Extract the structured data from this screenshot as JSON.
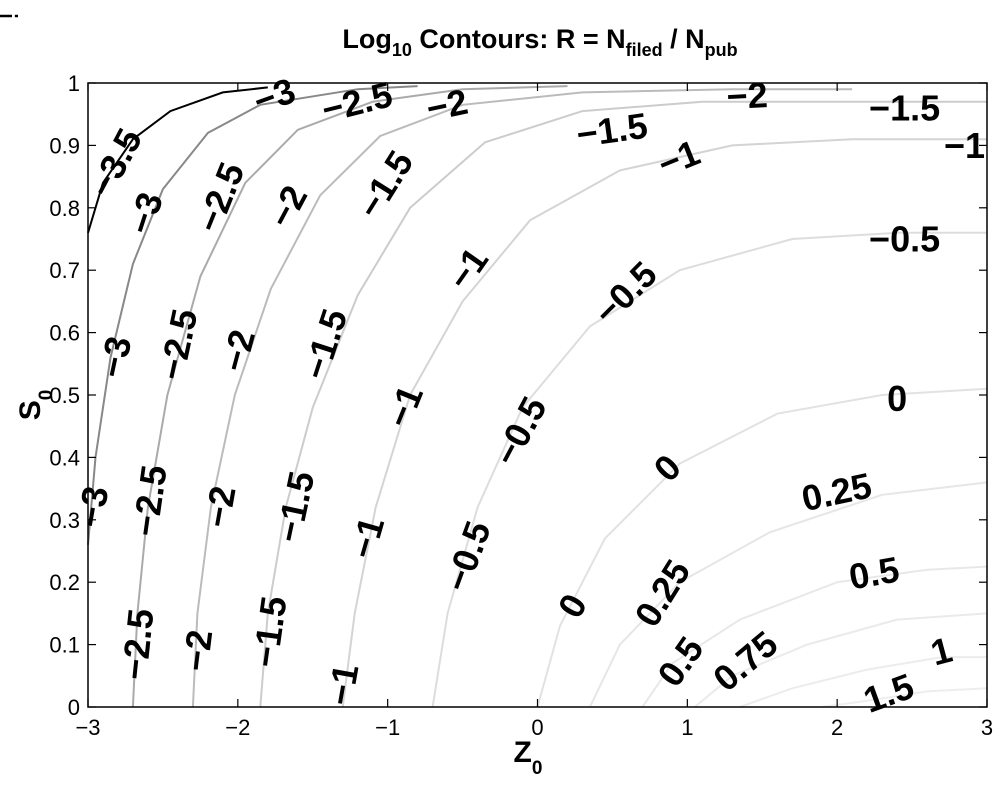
{
  "corner_icon": "i",
  "chart_data": {
    "type": "contour",
    "title": {
      "prefix": "Log",
      "prefix_sub": "10",
      "middle": " Contours: R = N",
      "mid_sub": "filed",
      "slash": " / N",
      "end_sub": "pub"
    },
    "xlabel": {
      "main": "Z",
      "sub": "0"
    },
    "ylabel": {
      "main": "S",
      "sub": "0"
    },
    "xlim": [
      -3,
      3
    ],
    "ylim": [
      0,
      1
    ],
    "xticks": [
      -3,
      -2,
      -1,
      0,
      1,
      2,
      3
    ],
    "xtick_labels": [
      "−3",
      "−2",
      "−1",
      "0",
      "1",
      "2",
      "3"
    ],
    "yticks": [
      0,
      0.1,
      0.2,
      0.3,
      0.4,
      0.5,
      0.6,
      0.7,
      0.8,
      0.9,
      1
    ],
    "ytick_labels": [
      "0",
      "0.1",
      "0.2",
      "0.3",
      "0.4",
      "0.5",
      "0.6",
      "0.7",
      "0.8",
      "0.9",
      "1"
    ],
    "levels": [
      {
        "level": -3.5,
        "color": "#000000",
        "points": [
          [
            -3,
            0.76
          ],
          [
            -2.9,
            0.84
          ],
          [
            -2.7,
            0.91
          ],
          [
            -2.45,
            0.955
          ],
          [
            -2.1,
            0.985
          ],
          [
            -1.8,
            0.993
          ]
        ]
      },
      {
        "level": -3,
        "color": "#888888",
        "points": [
          [
            -3,
            0.26
          ],
          [
            -2.95,
            0.4
          ],
          [
            -2.85,
            0.56
          ],
          [
            -2.7,
            0.71
          ],
          [
            -2.5,
            0.83
          ],
          [
            -2.2,
            0.92
          ],
          [
            -1.85,
            0.965
          ],
          [
            -1.2,
            0.99
          ],
          [
            -0.8,
            0.995
          ]
        ]
      },
      {
        "level": -2.5,
        "color": "#aaaaaa",
        "points": [
          [
            -2.7,
            0
          ],
          [
            -2.67,
            0.15
          ],
          [
            -2.6,
            0.32
          ],
          [
            -2.47,
            0.5
          ],
          [
            -2.25,
            0.69
          ],
          [
            -1.95,
            0.84
          ],
          [
            -1.6,
            0.925
          ],
          [
            -1.1,
            0.97
          ],
          [
            -0.5,
            0.99
          ],
          [
            0.2,
            0.995
          ]
        ]
      },
      {
        "level": -2,
        "color": "#bbbbbb",
        "points": [
          [
            -2.3,
            0
          ],
          [
            -2.27,
            0.15
          ],
          [
            -2.18,
            0.32
          ],
          [
            -2.02,
            0.5
          ],
          [
            -1.78,
            0.67
          ],
          [
            -1.45,
            0.82
          ],
          [
            -1.05,
            0.915
          ],
          [
            -0.5,
            0.965
          ],
          [
            0.3,
            0.985
          ],
          [
            1.3,
            0.99
          ],
          [
            2.1,
            0.99
          ]
        ]
      },
      {
        "level": -1.5,
        "color": "#cccccc",
        "points": [
          [
            -1.85,
            0
          ],
          [
            -1.8,
            0.15
          ],
          [
            -1.68,
            0.32
          ],
          [
            -1.5,
            0.48
          ],
          [
            -1.2,
            0.66
          ],
          [
            -0.85,
            0.8
          ],
          [
            -0.35,
            0.905
          ],
          [
            0.3,
            0.955
          ],
          [
            1.1,
            0.97
          ],
          [
            2,
            0.97
          ],
          [
            3,
            0.97
          ]
        ]
      },
      {
        "level": -1,
        "color": "#d4d4d4",
        "points": [
          [
            -1.3,
            0
          ],
          [
            -1.22,
            0.15
          ],
          [
            -1.08,
            0.32
          ],
          [
            -0.85,
            0.5
          ],
          [
            -0.5,
            0.65
          ],
          [
            -0.05,
            0.78
          ],
          [
            0.55,
            0.86
          ],
          [
            1.3,
            0.9
          ],
          [
            2.1,
            0.91
          ],
          [
            3,
            0.91
          ]
        ]
      },
      {
        "level": -0.5,
        "color": "#dddddd",
        "points": [
          [
            -0.7,
            0
          ],
          [
            -0.6,
            0.15
          ],
          [
            -0.4,
            0.32
          ],
          [
            -0.1,
            0.48
          ],
          [
            0.35,
            0.61
          ],
          [
            0.95,
            0.7
          ],
          [
            1.7,
            0.75
          ],
          [
            2.4,
            0.76
          ],
          [
            3,
            0.76
          ]
        ]
      },
      {
        "level": 0,
        "color": "#e2e2e2",
        "points": [
          [
            0,
            0
          ],
          [
            0.15,
            0.13
          ],
          [
            0.45,
            0.27
          ],
          [
            0.95,
            0.39
          ],
          [
            1.6,
            0.47
          ],
          [
            2.3,
            0.5
          ],
          [
            3,
            0.51
          ]
        ]
      },
      {
        "level": 0.25,
        "color": "#e6e6e6",
        "points": [
          [
            0.35,
            0
          ],
          [
            0.55,
            0.1
          ],
          [
            0.95,
            0.2
          ],
          [
            1.55,
            0.28
          ],
          [
            2.3,
            0.34
          ],
          [
            3,
            0.36
          ]
        ]
      },
      {
        "level": 0.5,
        "color": "#e8e8e8",
        "points": [
          [
            0.7,
            0
          ],
          [
            0.9,
            0.07
          ],
          [
            1.35,
            0.14
          ],
          [
            2,
            0.2
          ],
          [
            2.6,
            0.22
          ],
          [
            3,
            0.225
          ]
        ]
      },
      {
        "level": 0.75,
        "color": "#eaeaea",
        "points": [
          [
            1.05,
            0
          ],
          [
            1.3,
            0.05
          ],
          [
            1.8,
            0.1
          ],
          [
            2.4,
            0.14
          ],
          [
            3,
            0.15
          ]
        ]
      },
      {
        "level": 1,
        "color": "#ececec",
        "points": [
          [
            1.35,
            0
          ],
          [
            1.7,
            0.03
          ],
          [
            2.2,
            0.06
          ],
          [
            2.7,
            0.08
          ],
          [
            3,
            0.08
          ]
        ]
      },
      {
        "level": 1.5,
        "color": "#eeeeee",
        "points": [
          [
            1.9,
            0
          ],
          [
            2.2,
            0.01
          ],
          [
            2.6,
            0.025
          ],
          [
            3,
            0.03
          ]
        ]
      }
    ],
    "labels": [
      {
        "text": "−3.5",
        "x": -2.8,
        "y": 0.87,
        "angle": -62
      },
      {
        "text": "−3",
        "x": -1.75,
        "y": 0.975,
        "angle": -20
      },
      {
        "text": "−2.5",
        "x": -1.2,
        "y": 0.965,
        "angle": -14
      },
      {
        "text": "−2",
        "x": -0.6,
        "y": 0.96,
        "angle": -12
      },
      {
        "text": "−1.5",
        "x": 0.5,
        "y": 0.92,
        "angle": -8
      },
      {
        "text": "−2",
        "x": 1.4,
        "y": 0.975,
        "angle": -3
      },
      {
        "text": "−1.5",
        "x": 2.45,
        "y": 0.955,
        "angle": 0
      },
      {
        "text": "−1",
        "x": 2.85,
        "y": 0.895,
        "angle": 0
      },
      {
        "text": "−1",
        "x": 0.95,
        "y": 0.875,
        "angle": -22
      },
      {
        "text": "−0.5",
        "x": 2.45,
        "y": 0.745,
        "angle": 0
      },
      {
        "text": "−3",
        "x": -2.6,
        "y": 0.79,
        "angle": -72
      },
      {
        "text": "−2.5",
        "x": -2.1,
        "y": 0.815,
        "angle": -68
      },
      {
        "text": "−2",
        "x": -1.65,
        "y": 0.8,
        "angle": -62
      },
      {
        "text": "−1.5",
        "x": -1.0,
        "y": 0.835,
        "angle": -58
      },
      {
        "text": "−1",
        "x": -0.45,
        "y": 0.7,
        "angle": -55
      },
      {
        "text": "−0.5",
        "x": 0.6,
        "y": 0.66,
        "angle": -45
      },
      {
        "text": "−3",
        "x": -2.8,
        "y": 0.56,
        "angle": -78
      },
      {
        "text": "−2.5",
        "x": -2.38,
        "y": 0.58,
        "angle": -78
      },
      {
        "text": "−2",
        "x": -1.98,
        "y": 0.57,
        "angle": -75
      },
      {
        "text": "−1.5",
        "x": -1.4,
        "y": 0.58,
        "angle": -72
      },
      {
        "text": "−1",
        "x": -0.87,
        "y": 0.48,
        "angle": -68
      },
      {
        "text": "−0.5",
        "x": -0.1,
        "y": 0.44,
        "angle": -62
      },
      {
        "text": "0",
        "x": 2.4,
        "y": 0.49,
        "angle": 0
      },
      {
        "text": "−3",
        "x": -2.95,
        "y": 0.32,
        "angle": -80
      },
      {
        "text": "−2.5",
        "x": -2.57,
        "y": 0.33,
        "angle": -82
      },
      {
        "text": "−2",
        "x": -2.1,
        "y": 0.32,
        "angle": -80
      },
      {
        "text": "−1.5",
        "x": -1.6,
        "y": 0.32,
        "angle": -78
      },
      {
        "text": "−1",
        "x": -1.12,
        "y": 0.27,
        "angle": -74
      },
      {
        "text": "−0.5",
        "x": -0.45,
        "y": 0.24,
        "angle": -70
      },
      {
        "text": "0",
        "x": 0.88,
        "y": 0.38,
        "angle": -45
      },
      {
        "text": "0.25",
        "x": 2.0,
        "y": 0.34,
        "angle": -12
      },
      {
        "text": "0.5",
        "x": 2.25,
        "y": 0.21,
        "angle": -10
      },
      {
        "text": "−2.5",
        "x": -2.65,
        "y": 0.1,
        "angle": -84
      },
      {
        "text": "−2",
        "x": -2.25,
        "y": 0.09,
        "angle": -83
      },
      {
        "text": "−1.5",
        "x": -1.77,
        "y": 0.12,
        "angle": -82
      },
      {
        "text": "−1",
        "x": -1.28,
        "y": 0.035,
        "angle": -80
      },
      {
        "text": "0",
        "x": 0.25,
        "y": 0.16,
        "angle": -60
      },
      {
        "text": "0.25",
        "x": 0.85,
        "y": 0.18,
        "angle": -58
      },
      {
        "text": "0.5",
        "x": 0.97,
        "y": 0.07,
        "angle": -55
      },
      {
        "text": "0.75",
        "x": 1.4,
        "y": 0.07,
        "angle": -40
      },
      {
        "text": "1",
        "x": 2.7,
        "y": 0.085,
        "angle": -15
      },
      {
        "text": "1.5",
        "x": 2.35,
        "y": 0.018,
        "angle": -20
      }
    ],
    "grid": false,
    "legend": "none"
  }
}
